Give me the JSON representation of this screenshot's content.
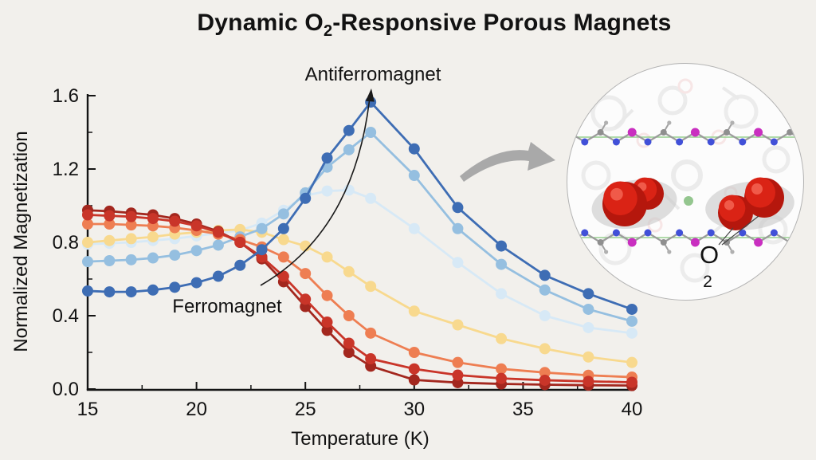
{
  "title": {
    "prefix": "Dynamic O",
    "sub": "2",
    "suffix": "-Responsive Porous Magnets"
  },
  "colors": {
    "background": "#f2f0ec",
    "text": "#121212",
    "gray_arrow": "#a9a9a9",
    "dark_blue": "#3e6db4",
    "medium_blue": "#95bfe0",
    "pale_blue": "#d7e9f6",
    "yellow": "#f8d98e",
    "orange": "#ee7e52",
    "red": "#c93529",
    "dark_red": "#a3271e"
  },
  "chart_data": {
    "type": "line",
    "title": "",
    "xlabel": "Temperature (K)",
    "ylabel": "Normalized Magnetization",
    "xlim": [
      15,
      40
    ],
    "ylim": [
      0.0,
      1.6
    ],
    "grid": false,
    "legend": false,
    "x_ticks_major": [
      15,
      20,
      25,
      30,
      35,
      40
    ],
    "x_ticks_minor": [
      17.5,
      22.5,
      27.5,
      32.5,
      37.5
    ],
    "y_ticks_major": [
      0.0,
      0.4,
      0.8,
      1.2,
      1.6
    ],
    "y_ticks_minor": [
      0.2,
      0.6,
      1.0,
      1.4
    ],
    "x": [
      15,
      16,
      17,
      18,
      19,
      20,
      21,
      22,
      23,
      24,
      25,
      26,
      27,
      28,
      30,
      32,
      34,
      36,
      38,
      40
    ],
    "series": [
      {
        "name": "pale-blue",
        "color": "#d7e9f6",
        "values": [
          0.79,
          0.795,
          0.8,
          0.81,
          0.82,
          0.835,
          0.85,
          0.865,
          0.905,
          0.975,
          1.055,
          1.08,
          1.085,
          1.04,
          0.875,
          0.69,
          0.52,
          0.4,
          0.335,
          0.305
        ]
      },
      {
        "name": "yellow",
        "color": "#f8d98e",
        "values": [
          0.8,
          0.81,
          0.82,
          0.83,
          0.845,
          0.855,
          0.865,
          0.87,
          0.855,
          0.815,
          0.78,
          0.72,
          0.64,
          0.56,
          0.425,
          0.35,
          0.275,
          0.22,
          0.175,
          0.145
        ]
      },
      {
        "name": "medium-blue",
        "color": "#95bfe0",
        "values": [
          0.695,
          0.7,
          0.705,
          0.715,
          0.73,
          0.755,
          0.785,
          0.83,
          0.875,
          0.955,
          1.07,
          1.21,
          1.305,
          1.4,
          1.165,
          0.875,
          0.68,
          0.54,
          0.435,
          0.37
        ]
      },
      {
        "name": "orange",
        "color": "#ee7e52",
        "values": [
          0.9,
          0.9,
          0.895,
          0.89,
          0.88,
          0.865,
          0.845,
          0.815,
          0.775,
          0.72,
          0.63,
          0.51,
          0.4,
          0.305,
          0.2,
          0.145,
          0.11,
          0.09,
          0.075,
          0.065
        ]
      },
      {
        "name": "dark-red",
        "color": "#a3271e",
        "values": [
          0.975,
          0.97,
          0.96,
          0.95,
          0.93,
          0.9,
          0.86,
          0.8,
          0.71,
          0.585,
          0.45,
          0.32,
          0.2,
          0.125,
          0.05,
          0.035,
          0.028,
          0.024,
          0.021,
          0.019
        ]
      },
      {
        "name": "red",
        "color": "#c93529",
        "values": [
          0.95,
          0.945,
          0.94,
          0.93,
          0.915,
          0.89,
          0.855,
          0.8,
          0.72,
          0.615,
          0.49,
          0.365,
          0.25,
          0.165,
          0.11,
          0.076,
          0.058,
          0.048,
          0.042,
          0.037
        ]
      },
      {
        "name": "dark-blue",
        "color": "#3e6db4",
        "values": [
          0.535,
          0.53,
          0.53,
          0.54,
          0.555,
          0.58,
          0.615,
          0.675,
          0.76,
          0.875,
          1.04,
          1.26,
          1.41,
          1.565,
          1.31,
          0.99,
          0.78,
          0.62,
          0.52,
          0.435
        ]
      }
    ],
    "annotations": [
      {
        "text": "Antiferromagnet"
      },
      {
        "text": "Ferromagnet"
      }
    ]
  },
  "inset": {
    "molecule_label": "O",
    "molecule_label_sub": "2"
  }
}
